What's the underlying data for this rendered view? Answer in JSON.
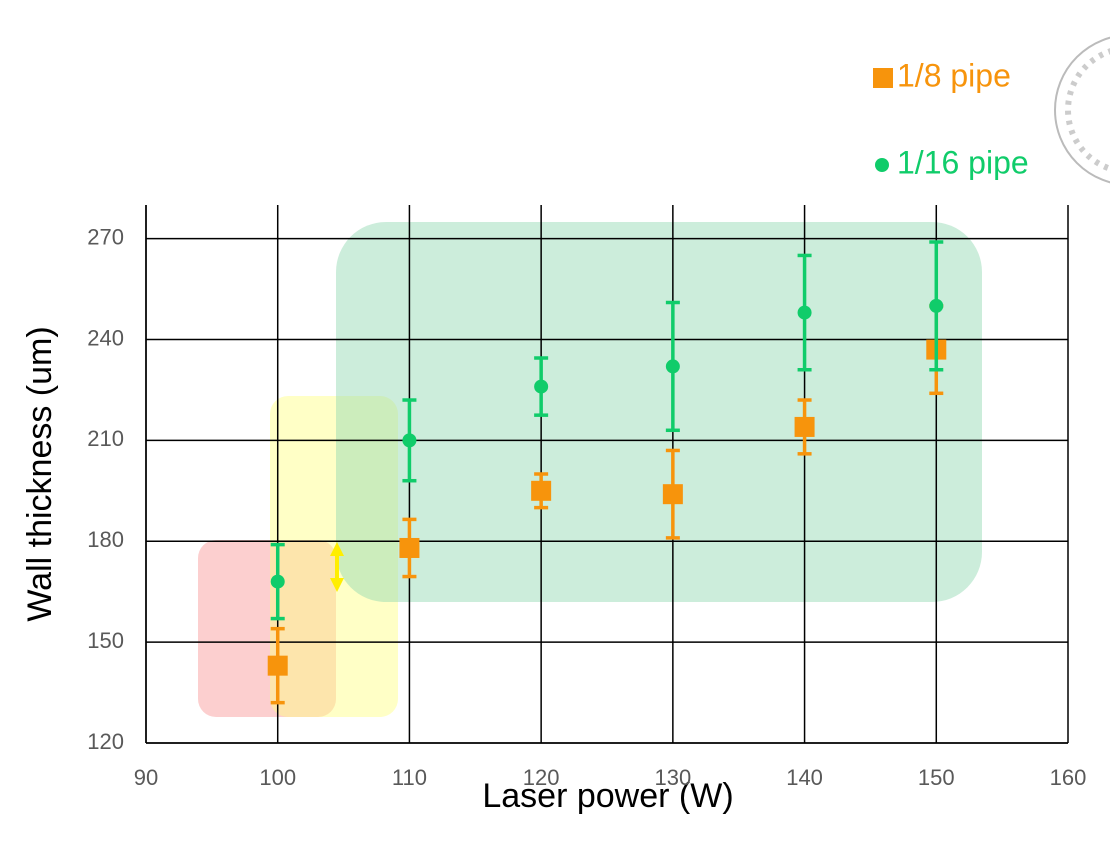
{
  "chart_data": {
    "type": "scatter",
    "x_label": "Laser power (W)",
    "y_label": "Wall thickness (um)",
    "x": [
      100,
      110,
      120,
      130,
      140,
      150
    ],
    "series": [
      {
        "name": "1/8 pipe",
        "color": "#f7940c",
        "marker": "square",
        "values": [
          143,
          178,
          195,
          194,
          214,
          237
        ],
        "errors": [
          11,
          8.5,
          5,
          13,
          8,
          13
        ]
      },
      {
        "name": "1/16 pipe",
        "color": "#10cc6a",
        "marker": "circle",
        "values": [
          168,
          210,
          226,
          232,
          248,
          250
        ],
        "errors": [
          11,
          12,
          8.5,
          19,
          17,
          19
        ]
      }
    ],
    "xlim": [
      90,
      160
    ],
    "xticks": [
      90,
      100,
      110,
      120,
      130,
      140,
      150,
      160
    ],
    "ylim": [
      120,
      280
    ],
    "yticks": [
      120,
      150,
      180,
      210,
      240,
      270
    ],
    "grid": true
  }
}
